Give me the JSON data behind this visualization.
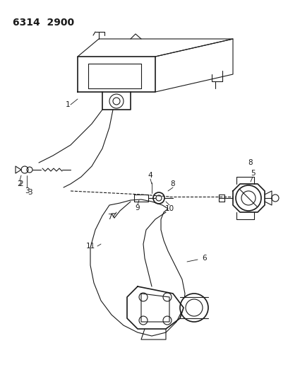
{
  "title": "6314  2900",
  "bg_color": "#ffffff",
  "line_color": "#1a1a1a",
  "title_fontsize": 10,
  "label_fontsize": 7.5,
  "figsize": [
    4.08,
    5.33
  ],
  "dpi": 100,
  "xlim": [
    0,
    408
  ],
  "ylim": [
    0,
    533
  ]
}
